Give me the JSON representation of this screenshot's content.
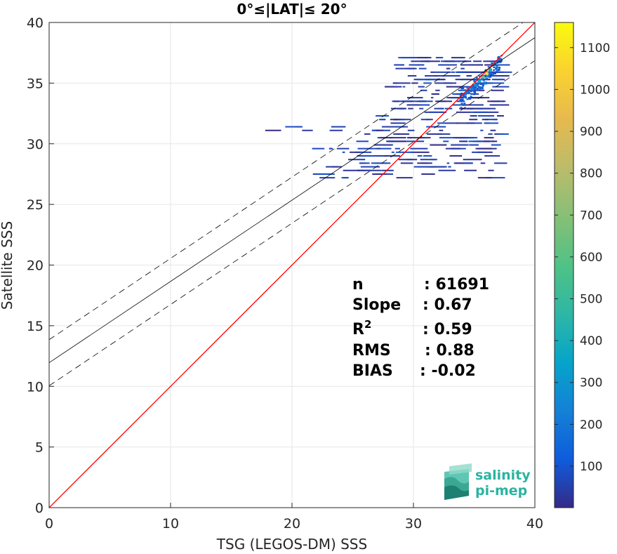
{
  "chart_data": {
    "type": "heatmap",
    "title": "0°≤|LAT|≤ 20°",
    "xlabel": "TSG (LEGOS-DM) SSS",
    "ylabel": "Satellite SSS",
    "xlim": [
      0,
      40
    ],
    "ylim": [
      0,
      40
    ],
    "xticks": [
      "0",
      "10",
      "20",
      "30",
      "40"
    ],
    "yticks": [
      "0",
      "5",
      "10",
      "15",
      "20",
      "25",
      "30",
      "35",
      "40"
    ],
    "grid": true,
    "colorbar": {
      "ticks": [
        "100",
        "200",
        "300",
        "400",
        "500",
        "600",
        "700",
        "800",
        "900",
        "1000",
        "1100"
      ],
      "range": [
        1,
        1160
      ],
      "colormap": "parula"
    },
    "lines": [
      {
        "kind": "identity",
        "color": "#ff0000",
        "style": "solid",
        "intercept": 0,
        "slope": 1
      },
      {
        "kind": "regression",
        "color": "#000000",
        "style": "solid",
        "intercept": 11.95,
        "slope": 0.67
      },
      {
        "kind": "regression-upper",
        "color": "#000000",
        "style": "dashed",
        "intercept": 13.85,
        "slope": 0.67
      },
      {
        "kind": "regression-lower",
        "color": "#000000",
        "style": "dashed",
        "intercept": 10.05,
        "slope": 0.67
      }
    ],
    "density_points": [
      {
        "x": 36.0,
        "y": 35.8,
        "count": 1100
      },
      {
        "x": 35.7,
        "y": 35.5,
        "count": 650
      },
      {
        "x": 35.4,
        "y": 35.2,
        "count": 350
      },
      {
        "x": 36.3,
        "y": 36.1,
        "count": 400
      },
      {
        "x": 36.6,
        "y": 36.5,
        "count": 250
      },
      {
        "x": 35.1,
        "y": 34.8,
        "count": 260
      },
      {
        "x": 34.8,
        "y": 34.5,
        "count": 220
      },
      {
        "x": 34.5,
        "y": 34.2,
        "count": 180
      },
      {
        "x": 34.2,
        "y": 33.9,
        "count": 140
      },
      {
        "x": 33.9,
        "y": 33.6,
        "count": 110
      },
      {
        "x": 36.9,
        "y": 36.8,
        "count": 150
      },
      {
        "x": 35.9,
        "y": 35.0,
        "count": 200
      },
      {
        "x": 35.6,
        "y": 34.6,
        "count": 160
      },
      {
        "x": 34.0,
        "y": 34.6,
        "count": 90
      }
    ],
    "stats": [
      {
        "label": "n",
        "value": ": 61691"
      },
      {
        "label": "Slope",
        "value": ": 0.67"
      },
      {
        "label": "R",
        "sup": "2",
        "value": ": 0.59"
      },
      {
        "label": "RMS",
        "value": ": 0.88"
      },
      {
        "label": "BIAS",
        "value": ": -0.02"
      }
    ]
  },
  "logo": {
    "line1": "salinity",
    "line2": "pi-mep"
  }
}
